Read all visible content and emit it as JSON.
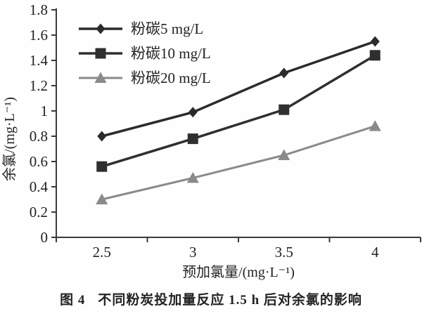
{
  "caption": {
    "label": "图 4",
    "text": "不同粉炭投加量反应 1.5 h 后对余氯的影响"
  },
  "chart_data": {
    "type": "line",
    "title": "",
    "xlabel": "预加氯量/(mg·L⁻¹)",
    "ylabel": "余氯/(mg·L⁻¹)",
    "categories": [
      "2.5",
      "3",
      "3.5",
      "4"
    ],
    "category_values": [
      2.5,
      3,
      3.5,
      4
    ],
    "series": [
      {
        "name": "粉碳5 mg/L",
        "marker": "diamond",
        "color": "#2b2b2b",
        "values": [
          0.8,
          0.99,
          1.3,
          1.55
        ]
      },
      {
        "name": "粉碳10 mg/L",
        "marker": "square",
        "color": "#2f2f2f",
        "values": [
          0.56,
          0.78,
          1.01,
          1.44
        ]
      },
      {
        "name": "粉碳20 mg/L",
        "marker": "triangle",
        "color": "#8a8a8a",
        "values": [
          0.3,
          0.47,
          0.65,
          0.88
        ]
      }
    ],
    "ylim": [
      0,
      1.8
    ],
    "ytick_values": [
      0,
      0.2,
      0.4,
      0.6,
      0.8,
      1,
      1.2,
      1.4,
      1.6,
      1.8
    ],
    "ytick_labels": [
      "0",
      "0.2",
      "0.4",
      "0.6",
      "0.8",
      "1",
      "1.2",
      "1.4",
      "1.6",
      "1.8"
    ],
    "grid": false,
    "legend_position": "top-left-inside",
    "axis_color": "#3a3a3a",
    "text_color": "#232323"
  }
}
